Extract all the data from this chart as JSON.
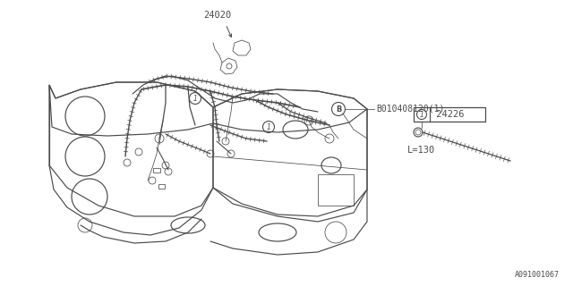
{
  "bg_color": "#ffffff",
  "lc": "#4a4a4a",
  "lc_thin": "#666666",
  "part_24020": "24020",
  "part_B": "B010408120（1）",
  "part_B_raw": "B010408120(1)",
  "part_24226": "24226",
  "part_L": "L=130",
  "diagram_id": "A091001067",
  "fs": 7.5
}
